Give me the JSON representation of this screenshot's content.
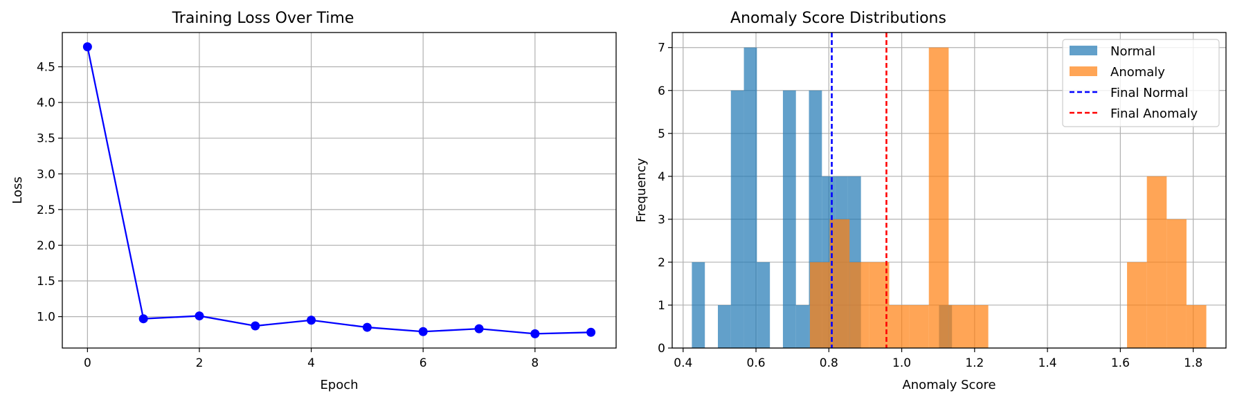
{
  "chart_data": [
    {
      "type": "line",
      "title": "Training Loss Over Time",
      "xlabel": "Epoch",
      "ylabel": "Loss",
      "xlim": [
        -0.45,
        9.45
      ],
      "ylim": [
        0.56,
        4.98
      ],
      "xticks": [
        0,
        2,
        4,
        6,
        8
      ],
      "xtick_labels": [
        "0",
        "2",
        "4",
        "6",
        "8"
      ],
      "yticks": [
        1.0,
        1.5,
        2.0,
        2.5,
        3.0,
        3.5,
        4.0,
        4.5
      ],
      "ytick_labels": [
        "1.0",
        "1.5",
        "2.0",
        "2.5",
        "3.0",
        "3.5",
        "4.0",
        "4.5"
      ],
      "grid": true,
      "color": "#0000ff",
      "series": [
        {
          "x": [
            0,
            1,
            2,
            3,
            4,
            5,
            6,
            7,
            8,
            9
          ],
          "values": [
            4.78,
            0.97,
            1.01,
            0.87,
            0.95,
            0.85,
            0.79,
            0.83,
            0.76,
            0.78
          ]
        }
      ]
    },
    {
      "type": "histogram",
      "title": "Anomaly Score Distributions",
      "xlabel": "Anomaly Score",
      "ylabel": "Frequency",
      "xlim": [
        0.37,
        1.89
      ],
      "ylim": [
        0,
        7.35
      ],
      "xticks": [
        0.4,
        0.6,
        0.8,
        1.0,
        1.2,
        1.4,
        1.6,
        1.8
      ],
      "xtick_labels": [
        "0.4",
        "0.6",
        "0.8",
        "1.0",
        "1.2",
        "1.4",
        "1.6",
        "1.8"
      ],
      "yticks": [
        0,
        1,
        2,
        3,
        4,
        5,
        6,
        7
      ],
      "ytick_labels": [
        "0",
        "1",
        "2",
        "3",
        "4",
        "5",
        "6",
        "7"
      ],
      "grid": true,
      "legend": "top-right",
      "series": [
        {
          "name": "Normal",
          "color": "#1f77b4",
          "opacity": 0.7,
          "bin_start": 0.424,
          "bin_width": 0.0357,
          "counts": [
            2,
            0,
            1,
            6,
            7,
            2,
            0,
            6,
            1,
            6,
            4,
            4,
            4,
            0,
            0,
            0,
            0,
            0,
            0,
            1
          ]
        },
        {
          "name": "Anomaly",
          "color": "#ff7f0e",
          "opacity": 0.7,
          "bin_start": 0.748,
          "bin_width": 0.0544,
          "counts": [
            2,
            3,
            2,
            2,
            1,
            1,
            7,
            1,
            1,
            0,
            0,
            0,
            0,
            0,
            0,
            0,
            2,
            4,
            3,
            1
          ]
        }
      ],
      "vlines": [
        {
          "name": "Final Normal",
          "x": 0.808,
          "color": "#0000ff",
          "style": "dashed"
        },
        {
          "name": "Final Anomaly",
          "x": 0.958,
          "color": "#ff0000",
          "style": "dashed"
        }
      ]
    }
  ]
}
